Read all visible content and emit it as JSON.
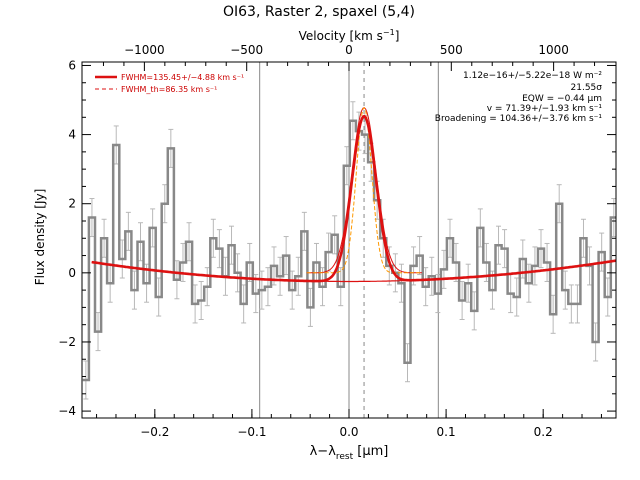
{
  "chart_data": {
    "type": "line",
    "title": "OI63, Raster 2, spaxel (5,4)",
    "xlabel": "λ−λrest [μm]",
    "xlabel_main": "λ−λ",
    "xlabel_sub": "rest",
    "xlabel_unit": " [μm]",
    "x2label": "Velocity [km s⁻¹]",
    "x2label_main": "Velocity [km s",
    "x2label_sup": "−1",
    "x2label_end": "]",
    "ylabel": "Flux density [Jy]",
    "xlim": [
      -0.275,
      0.275
    ],
    "ylim": [
      -4.2,
      6.1
    ],
    "x_ticks": [
      -0.2,
      -0.1,
      0.0,
      0.1,
      0.2
    ],
    "x_tick_labels": [
      "−0.2",
      "−0.1",
      "0.0",
      "0.1",
      "0.2"
    ],
    "y_ticks": [
      -4,
      -2,
      0,
      2,
      4,
      6
    ],
    "y_tick_labels": [
      "−4",
      "−2",
      "0",
      "2",
      "4",
      "6"
    ],
    "v_ticks": [
      -1000,
      -500,
      0,
      500,
      1000
    ],
    "v_tick_labels": [
      "−1000",
      "−500",
      "0",
      "500",
      "1000"
    ],
    "vertical_lines": [
      -0.092,
      0.0,
      0.092
    ],
    "dashed_line": 0.0155,
    "colors": {
      "data": "#888888",
      "fit": "#dd1111",
      "component": "#ff9900",
      "lines": "#888888"
    },
    "legend": {
      "position": "top-left",
      "entries": [
        {
          "label": "FWHM=135.45+/−4.88 km s⁻¹",
          "style": "solid"
        },
        {
          "label": "FWHM_th=86.35 km s⁻¹",
          "style": "dashed"
        }
      ]
    },
    "annotations": [
      "1.12e−16+/−5.22e−18 W m⁻²",
      "21.55σ",
      "EQW = −0.44 μm",
      "v = 71.39+/−1.93 km s⁻¹",
      "Broadening = 104.36+/−3.76 km s⁻¹"
    ],
    "model": {
      "baseline_a": -0.25,
      "baseline_b": 0.0,
      "baseline_c": 8.0,
      "peak_center": 0.0155,
      "peak_amplitude": 4.78,
      "peak_sigma": 0.0125,
      "thermal_sigma": 0.008
    },
    "series": [
      {
        "name": "data",
        "step": 0.00625,
        "x": [
          -0.271,
          -0.26475,
          -0.2585,
          -0.25225,
          -0.246,
          -0.23975,
          -0.2335,
          -0.22725,
          -0.221,
          -0.21475,
          -0.2085,
          -0.20225,
          -0.196,
          -0.18975,
          -0.1835,
          -0.17725,
          -0.171,
          -0.16475,
          -0.1585,
          -0.15225,
          -0.146,
          -0.13975,
          -0.1335,
          -0.12725,
          -0.121,
          -0.11475,
          -0.1085,
          -0.10225,
          -0.096,
          -0.08975,
          -0.0835,
          -0.07725,
          -0.071,
          -0.06475,
          -0.0585,
          -0.05225,
          -0.046,
          -0.03975,
          -0.0335,
          -0.02725,
          -0.021,
          -0.01475,
          -0.0085,
          -0.00225,
          0.004,
          0.01025,
          0.0165,
          0.02275,
          0.029,
          0.03525,
          0.0415,
          0.04775,
          0.054,
          0.06025,
          0.0665,
          0.07275,
          0.079,
          0.08525,
          0.0915,
          0.09775,
          0.104,
          0.11025,
          0.1165,
          0.12275,
          0.129,
          0.13525,
          0.1415,
          0.14775,
          0.154,
          0.16025,
          0.1665,
          0.17275,
          0.179,
          0.18525,
          0.1915,
          0.19775,
          0.204,
          0.21025,
          0.2165,
          0.22275,
          0.229,
          0.23525,
          0.2415,
          0.24775,
          0.254,
          0.26025,
          0.2665,
          0.27275
        ],
        "y": [
          -3.1,
          1.6,
          -1.7,
          1.0,
          -0.3,
          3.7,
          0.4,
          1.2,
          -0.5,
          0.9,
          -0.3,
          1.3,
          -0.7,
          2.0,
          3.6,
          -0.2,
          0.3,
          0.9,
          -0.9,
          -0.8,
          -0.4,
          1.0,
          0.7,
          -0.1,
          0.8,
          0.0,
          -0.9,
          0.3,
          -0.6,
          -0.5,
          -0.4,
          0.2,
          -0.1,
          0.5,
          -0.5,
          -0.1,
          1.2,
          -1.0,
          0.3,
          -0.4,
          0.6,
          1.1,
          -0.4,
          3.1,
          4.4,
          4.1,
          4.0,
          3.2,
          2.1,
          1.0,
          0.2,
          0.0,
          -0.3,
          -2.6,
          0.2,
          0.5,
          -0.4,
          -0.1,
          -0.6,
          0.1,
          1.0,
          0.3,
          -0.8,
          -0.3,
          -1.1,
          1.3,
          0.3,
          -0.5,
          0.8,
          0.7,
          -0.6,
          -0.7,
          0.4,
          -0.3,
          0.2,
          0.7,
          0.3,
          -1.2,
          2.0,
          -0.5,
          -0.9,
          -0.9,
          1.0,
          0.2,
          -2.0,
          0.6,
          -0.7,
          1.6
        ],
        "err": 0.55
      }
    ]
  }
}
